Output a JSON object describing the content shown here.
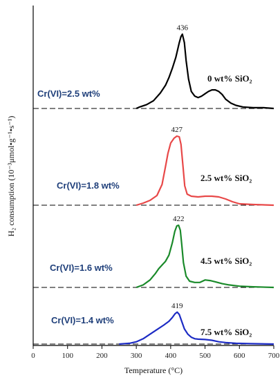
{
  "chart_data": {
    "type": "line",
    "xlabel": "Temperature (°C)",
    "ylabel": "H₂ consumption (10⁻³μmol•g⁻¹•s⁻¹)",
    "xlim": [
      0,
      700
    ],
    "x_ticks": [
      0,
      100,
      200,
      300,
      400,
      500,
      600,
      700
    ],
    "grid": false,
    "panels": [
      {
        "cr_label": "Cr(VI)=2.5 wt%",
        "sio2_label": "0 wt% SiO₂",
        "peak_label": "436",
        "color": "#000000",
        "points": [
          [
            300,
            0
          ],
          [
            310,
            0.02
          ],
          [
            330,
            0.05
          ],
          [
            350,
            0.1
          ],
          [
            370,
            0.2
          ],
          [
            385,
            0.3
          ],
          [
            395,
            0.4
          ],
          [
            405,
            0.52
          ],
          [
            415,
            0.66
          ],
          [
            425,
            0.85
          ],
          [
            430,
            0.93
          ],
          [
            434,
            0.96
          ],
          [
            440,
            0.85
          ],
          [
            445,
            0.62
          ],
          [
            452,
            0.38
          ],
          [
            460,
            0.22
          ],
          [
            470,
            0.16
          ],
          [
            480,
            0.14
          ],
          [
            490,
            0.16
          ],
          [
            500,
            0.19
          ],
          [
            510,
            0.22
          ],
          [
            520,
            0.24
          ],
          [
            530,
            0.24
          ],
          [
            540,
            0.22
          ],
          [
            550,
            0.18
          ],
          [
            560,
            0.12
          ],
          [
            575,
            0.07
          ],
          [
            590,
            0.04
          ],
          [
            610,
            0.02
          ],
          [
            640,
            0.01
          ],
          [
            670,
            0.01
          ],
          [
            700,
            0
          ]
        ]
      },
      {
        "cr_label": "Cr(VI)=1.8 wt%",
        "sio2_label": "2.5 wt% SiO₂",
        "peak_label": "427",
        "color": "#e84848",
        "points": [
          [
            300,
            0
          ],
          [
            320,
            0.03
          ],
          [
            340,
            0.07
          ],
          [
            360,
            0.14
          ],
          [
            375,
            0.3
          ],
          [
            385,
            0.56
          ],
          [
            392,
            0.75
          ],
          [
            400,
            0.9
          ],
          [
            410,
            0.97
          ],
          [
            418,
            1.0
          ],
          [
            425,
            0.99
          ],
          [
            430,
            0.88
          ],
          [
            436,
            0.55
          ],
          [
            441,
            0.28
          ],
          [
            448,
            0.16
          ],
          [
            460,
            0.13
          ],
          [
            480,
            0.12
          ],
          [
            500,
            0.13
          ],
          [
            520,
            0.13
          ],
          [
            540,
            0.12
          ],
          [
            560,
            0.09
          ],
          [
            580,
            0.05
          ],
          [
            600,
            0.02
          ],
          [
            640,
            0.01
          ],
          [
            700,
            0
          ]
        ]
      },
      {
        "cr_label": "Cr(VI)=1.6 wt%",
        "sio2_label": "4.5 wt% SiO₂",
        "peak_label": "422",
        "color": "#1a8a2a",
        "points": [
          [
            300,
            0
          ],
          [
            320,
            0.04
          ],
          [
            340,
            0.12
          ],
          [
            355,
            0.22
          ],
          [
            365,
            0.3
          ],
          [
            375,
            0.36
          ],
          [
            385,
            0.42
          ],
          [
            395,
            0.52
          ],
          [
            405,
            0.72
          ],
          [
            412,
            0.9
          ],
          [
            418,
            0.99
          ],
          [
            423,
            1.0
          ],
          [
            428,
            0.92
          ],
          [
            432,
            0.7
          ],
          [
            437,
            0.4
          ],
          [
            445,
            0.18
          ],
          [
            455,
            0.1
          ],
          [
            470,
            0.08
          ],
          [
            485,
            0.08
          ],
          [
            500,
            0.12
          ],
          [
            515,
            0.11
          ],
          [
            530,
            0.09
          ],
          [
            550,
            0.06
          ],
          [
            570,
            0.04
          ],
          [
            600,
            0.02
          ],
          [
            640,
            0.01
          ],
          [
            700,
            0
          ]
        ]
      },
      {
        "cr_label": "Cr(VI)=1.4 wt%",
        "sio2_label": "7.5 wt% SiO₂",
        "peak_label": "419",
        "color": "#1c2bc4",
        "points": [
          [
            250,
            0
          ],
          [
            280,
            0.02
          ],
          [
            300,
            0.06
          ],
          [
            320,
            0.14
          ],
          [
            340,
            0.26
          ],
          [
            360,
            0.38
          ],
          [
            380,
            0.5
          ],
          [
            395,
            0.6
          ],
          [
            405,
            0.7
          ],
          [
            413,
            0.8
          ],
          [
            419,
            0.84
          ],
          [
            425,
            0.78
          ],
          [
            432,
            0.6
          ],
          [
            440,
            0.4
          ],
          [
            450,
            0.26
          ],
          [
            460,
            0.18
          ],
          [
            470,
            0.14
          ],
          [
            480,
            0.13
          ],
          [
            500,
            0.12
          ],
          [
            520,
            0.1
          ],
          [
            540,
            0.06
          ],
          [
            560,
            0.04
          ],
          [
            590,
            0.02
          ],
          [
            630,
            0.01
          ],
          [
            700,
            0
          ]
        ]
      }
    ]
  }
}
